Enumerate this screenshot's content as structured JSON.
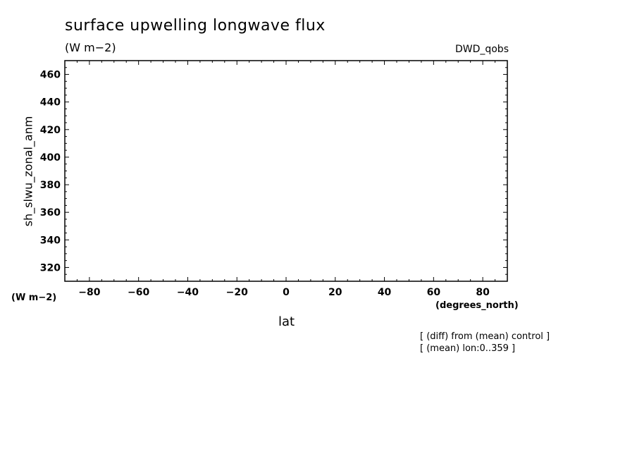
{
  "chart_data": {
    "type": "line",
    "title": "surface upwelling longwave flux",
    "units": "(W m−2)",
    "source_label": "DWD_qobs",
    "xlabel": "lat",
    "ylabel": "sh_slwu_zonal_anm",
    "x_units": "(degrees_north)",
    "y_units": "(W m−2)",
    "xlim": [
      -90,
      90
    ],
    "ylim": [
      310,
      470
    ],
    "x_ticks": [
      -80,
      -60,
      -40,
      -20,
      0,
      20,
      40,
      60,
      80
    ],
    "x_tick_labels": [
      "−80",
      "−60",
      "−40",
      "−20",
      "0",
      "20",
      "40",
      "60",
      "80"
    ],
    "y_ticks": [
      320,
      340,
      360,
      380,
      400,
      420,
      440,
      460
    ],
    "y_tick_labels": [
      "320",
      "340",
      "360",
      "380",
      "400",
      "420",
      "440",
      "460"
    ],
    "series": [],
    "grid": false,
    "notes": [
      "[ (diff) from (mean) control ]",
      "[ (mean) lon:0..359 ]"
    ]
  }
}
